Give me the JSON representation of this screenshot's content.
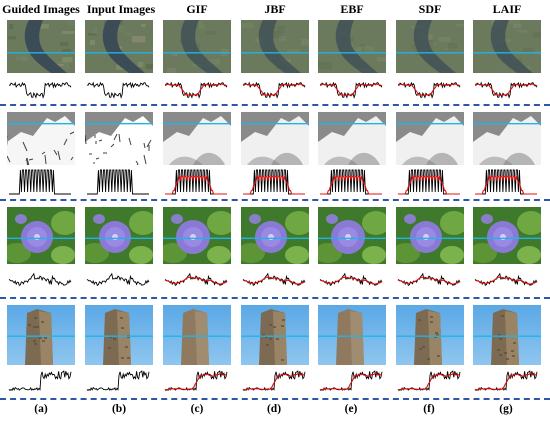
{
  "column_headers": [
    "Guided Images",
    "Input Images",
    "GIF",
    "JBF",
    "EBF",
    "SDF",
    "LAIF"
  ],
  "column_labels": [
    "(a)",
    "(b)",
    "(c)",
    "(d)",
    "(e)",
    "(f)",
    "(g)"
  ],
  "colors": {
    "separator": "#2f57a8",
    "scanline": "#1fb4e8",
    "reference_profile": "#000000",
    "filtered_profile": "#e01010"
  }
}
